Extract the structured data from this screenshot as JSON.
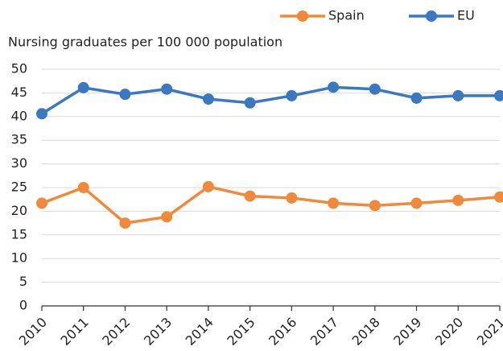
{
  "chart_data": {
    "type": "line",
    "ylabel": "Nursing graduates per 100 000 population",
    "categories": [
      "2010",
      "2011",
      "2012",
      "2013",
      "2014",
      "2015",
      "2016",
      "2017",
      "2018",
      "2019",
      "2020",
      "2021"
    ],
    "series": [
      {
        "name": "Spain",
        "color": "#f08a3a",
        "values": [
          21.7,
          25.0,
          17.5,
          18.8,
          25.2,
          23.2,
          22.8,
          21.7,
          21.2,
          21.7,
          22.3,
          23.0
        ]
      },
      {
        "name": "EU",
        "color": "#3a78c0",
        "values": [
          40.6,
          46.1,
          44.7,
          45.8,
          43.7,
          42.9,
          44.4,
          46.2,
          45.8,
          43.9,
          44.4,
          44.4
        ]
      }
    ],
    "ylim": [
      0,
      50
    ],
    "yticks": [
      0,
      5,
      10,
      15,
      20,
      25,
      30,
      35,
      40,
      45,
      50
    ],
    "grid": true,
    "legend": "top"
  }
}
